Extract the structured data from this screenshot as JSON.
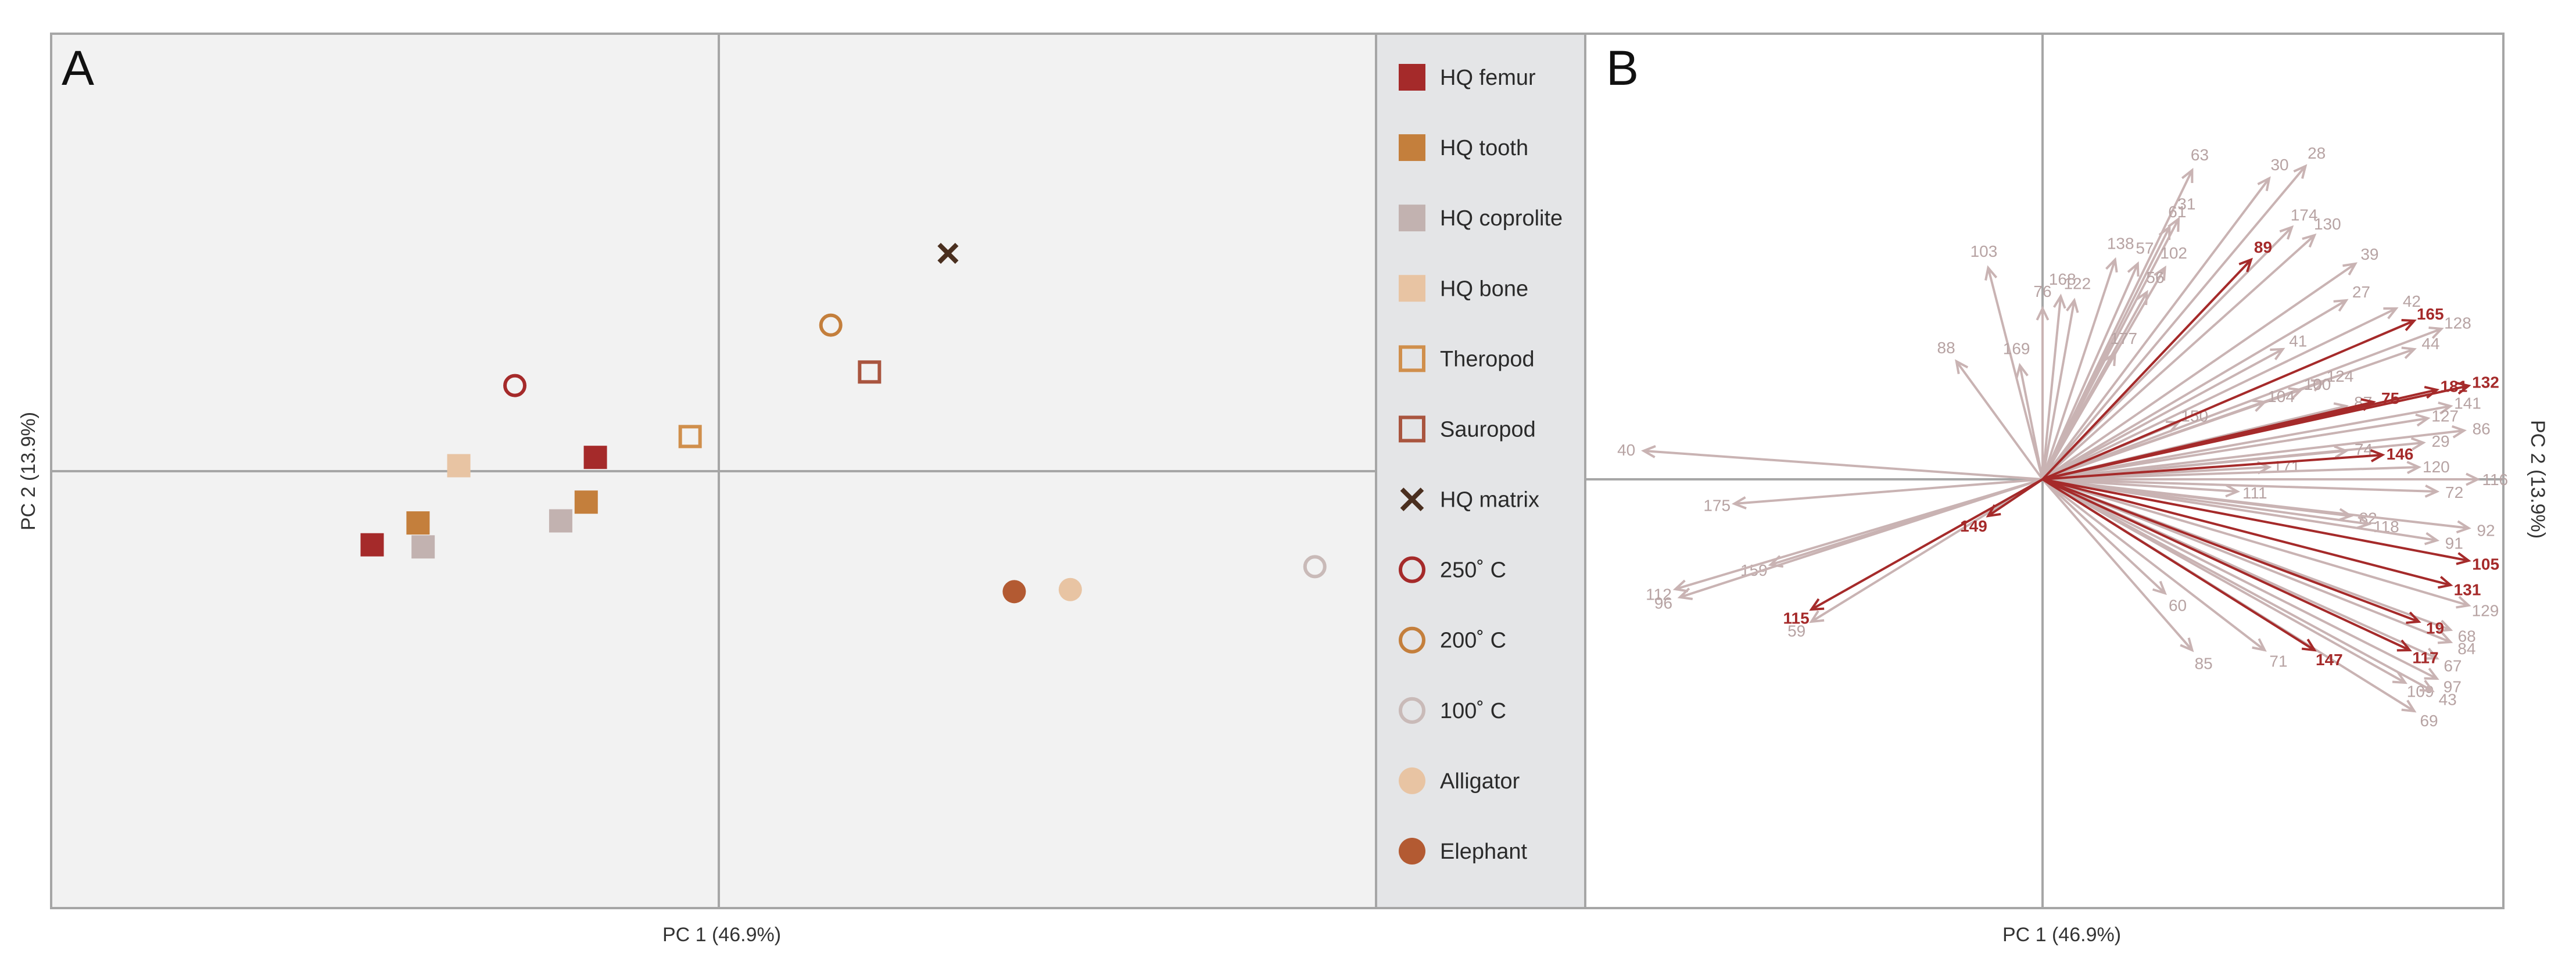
{
  "colors": {
    "femur": "#a52a2a",
    "tooth": "#c47f3c",
    "coprolite": "#c2b2b0",
    "bone": "#e8c4a3",
    "theropod": "#d08f4c",
    "sauropod": "#a9553f",
    "matrix": "#4a2f1f",
    "c250": "#a52a2a",
    "c200": "#c47f3c",
    "c100": "#c9bab8",
    "alligator": "#e8c4a3",
    "elephant": "#b35a32",
    "vector_grey": "#c9b3b3",
    "vector_red": "#a52a2a",
    "panel_bg": "#f2f2f2",
    "legend_bg": "#e4e5e7",
    "frame": "#a6a6a6"
  },
  "chart_data": [
    {
      "type": "scatter",
      "panel_label": "A",
      "xlabel": "PC 1 (46.9%)",
      "ylabel": "PC 2 (13.9%)",
      "xlim": [
        -6.5,
        6.5
      ],
      "ylim": [
        -4.2,
        4.2
      ],
      "grid": false,
      "legend_position": "right",
      "series": [
        {
          "name": "HQ femur",
          "marker": "square-filled",
          "color_key": "femur",
          "points": [
            [
              -3.35,
              -0.71
            ],
            [
              -1.16,
              0.13
            ]
          ]
        },
        {
          "name": "HQ tooth",
          "marker": "square-filled",
          "color_key": "tooth",
          "points": [
            [
              -2.9,
              -0.5
            ],
            [
              -1.25,
              -0.3
            ]
          ]
        },
        {
          "name": "HQ coprolite",
          "marker": "square-filled",
          "color_key": "coprolite",
          "points": [
            [
              -2.85,
              -0.73
            ],
            [
              -1.5,
              -0.48
            ]
          ]
        },
        {
          "name": "HQ bone",
          "marker": "square-filled",
          "color_key": "bone",
          "points": [
            [
              -2.5,
              0.05
            ]
          ]
        },
        {
          "name": "Theropod",
          "marker": "square-open",
          "color_key": "theropod",
          "points": [
            [
              -0.23,
              0.33
            ]
          ]
        },
        {
          "name": "Sauropod",
          "marker": "square-open",
          "color_key": "sauropod",
          "points": [
            [
              1.53,
              0.95
            ]
          ]
        },
        {
          "name": "HQ matrix",
          "marker": "cross",
          "color_key": "matrix",
          "points": [
            [
              2.3,
              2.09
            ]
          ]
        },
        {
          "name": "250˚ C",
          "marker": "circle-open",
          "color_key": "c250",
          "points": [
            [
              -1.95,
              0.82
            ]
          ]
        },
        {
          "name": "200˚ C",
          "marker": "circle-open",
          "color_key": "c200",
          "points": [
            [
              1.15,
              1.4
            ]
          ]
        },
        {
          "name": "100˚ C",
          "marker": "circle-open",
          "color_key": "c100",
          "points": [
            [
              5.9,
              -0.92
            ]
          ]
        },
        {
          "name": "Alligator",
          "marker": "circle-filled",
          "color_key": "alligator",
          "points": [
            [
              3.5,
              -1.14
            ]
          ]
        },
        {
          "name": "Elephant",
          "marker": "circle-filled",
          "color_key": "elephant",
          "points": [
            [
              2.95,
              -1.16
            ]
          ]
        }
      ]
    },
    {
      "type": "biplot",
      "panel_label": "B",
      "xlabel": "PC 1 (46.9%)",
      "ylabel": "PC 2 (13.9%)",
      "xlim": [
        -1.0,
        1.0
      ],
      "ylim": [
        -1.0,
        1.0
      ],
      "grid": false,
      "vectors": [
        {
          "label": "63",
          "x": 0.33,
          "y": 0.76,
          "highlight": false
        },
        {
          "label": "30",
          "x": 0.5,
          "y": 0.74,
          "highlight": false
        },
        {
          "label": "28",
          "x": 0.58,
          "y": 0.77,
          "highlight": false
        },
        {
          "label": "61",
          "x": 0.28,
          "y": 0.62,
          "highlight": false
        },
        {
          "label": "31",
          "x": 0.3,
          "y": 0.64,
          "highlight": false
        },
        {
          "label": "174",
          "x": 0.55,
          "y": 0.62,
          "highlight": false
        },
        {
          "label": "130",
          "x": 0.6,
          "y": 0.6,
          "highlight": false
        },
        {
          "label": "103",
          "x": -0.12,
          "y": 0.52,
          "highlight": false
        },
        {
          "label": "138",
          "x": 0.16,
          "y": 0.54,
          "highlight": false
        },
        {
          "label": "57",
          "x": 0.21,
          "y": 0.53,
          "highlight": false
        },
        {
          "label": "102",
          "x": 0.27,
          "y": 0.52,
          "highlight": false
        },
        {
          "label": "89",
          "x": 0.46,
          "y": 0.54,
          "highlight": true
        },
        {
          "label": "39",
          "x": 0.69,
          "y": 0.53,
          "highlight": false
        },
        {
          "label": "168",
          "x": 0.04,
          "y": 0.45,
          "highlight": false
        },
        {
          "label": "122",
          "x": 0.07,
          "y": 0.44,
          "highlight": false
        },
        {
          "label": "56",
          "x": 0.23,
          "y": 0.46,
          "highlight": false
        },
        {
          "label": "76",
          "x": 0.0,
          "y": 0.42,
          "highlight": false
        },
        {
          "label": "27",
          "x": 0.67,
          "y": 0.44,
          "highlight": false
        },
        {
          "label": "42",
          "x": 0.78,
          "y": 0.42,
          "highlight": false
        },
        {
          "label": "165",
          "x": 0.82,
          "y": 0.39,
          "highlight": true
        },
        {
          "label": "128",
          "x": 0.88,
          "y": 0.37,
          "highlight": false
        },
        {
          "label": "88",
          "x": -0.19,
          "y": 0.29,
          "highlight": false
        },
        {
          "label": "169",
          "x": -0.05,
          "y": 0.28,
          "highlight": false
        },
        {
          "label": "177",
          "x": 0.16,
          "y": 0.31,
          "highlight": false
        },
        {
          "label": "41",
          "x": 0.53,
          "y": 0.32,
          "highlight": false
        },
        {
          "label": "44",
          "x": 0.82,
          "y": 0.32,
          "highlight": false
        },
        {
          "label": "124",
          "x": 0.62,
          "y": 0.24,
          "highlight": false
        },
        {
          "label": "100",
          "x": 0.57,
          "y": 0.22,
          "highlight": false
        },
        {
          "label": "181",
          "x": 0.87,
          "y": 0.22,
          "highlight": true
        },
        {
          "label": "132",
          "x": 0.94,
          "y": 0.23,
          "highlight": true
        },
        {
          "label": "75",
          "x": 0.73,
          "y": 0.19,
          "highlight": true
        },
        {
          "label": "104",
          "x": 0.49,
          "y": 0.19,
          "highlight": false
        },
        {
          "label": "87",
          "x": 0.67,
          "y": 0.18,
          "highlight": false
        },
        {
          "label": "141",
          "x": 0.9,
          "y": 0.18,
          "highlight": false
        },
        {
          "label": "150",
          "x": 0.3,
          "y": 0.14,
          "highlight": false
        },
        {
          "label": "127",
          "x": 0.85,
          "y": 0.15,
          "highlight": false
        },
        {
          "label": "86",
          "x": 0.93,
          "y": 0.12,
          "highlight": false
        },
        {
          "label": "29",
          "x": 0.84,
          "y": 0.09,
          "highlight": false
        },
        {
          "label": "74",
          "x": 0.67,
          "y": 0.07,
          "highlight": false
        },
        {
          "label": "146",
          "x": 0.75,
          "y": 0.06,
          "highlight": true
        },
        {
          "label": "171",
          "x": 0.5,
          "y": 0.03,
          "highlight": false
        },
        {
          "label": "120",
          "x": 0.83,
          "y": 0.03,
          "highlight": false
        },
        {
          "label": "116",
          "x": 0.96,
          "y": 0.0,
          "highlight": false
        },
        {
          "label": "111",
          "x": 0.43,
          "y": -0.03,
          "highlight": false
        },
        {
          "label": "72",
          "x": 0.87,
          "y": -0.03,
          "highlight": false
        },
        {
          "label": "40",
          "x": -0.88,
          "y": 0.07,
          "highlight": false
        },
        {
          "label": "175",
          "x": -0.68,
          "y": -0.06,
          "highlight": false
        },
        {
          "label": "149",
          "x": -0.12,
          "y": -0.09,
          "highlight": true
        },
        {
          "label": "82",
          "x": 0.68,
          "y": -0.09,
          "highlight": false
        },
        {
          "label": "118",
          "x": 0.72,
          "y": -0.11,
          "highlight": false
        },
        {
          "label": "92",
          "x": 0.94,
          "y": -0.12,
          "highlight": false
        },
        {
          "label": "91",
          "x": 0.87,
          "y": -0.15,
          "highlight": false
        },
        {
          "label": "105",
          "x": 0.94,
          "y": -0.2,
          "highlight": true
        },
        {
          "label": "159",
          "x": -0.6,
          "y": -0.21,
          "highlight": false
        },
        {
          "label": "112",
          "x": -0.81,
          "y": -0.27,
          "highlight": false
        },
        {
          "label": "96",
          "x": -0.8,
          "y": -0.29,
          "highlight": false
        },
        {
          "label": "131",
          "x": 0.9,
          "y": -0.26,
          "highlight": true
        },
        {
          "label": "129",
          "x": 0.94,
          "y": -0.31,
          "highlight": false
        },
        {
          "label": "115",
          "x": -0.51,
          "y": -0.32,
          "highlight": true
        },
        {
          "label": "59",
          "x": -0.51,
          "y": -0.35,
          "highlight": false
        },
        {
          "label": "60",
          "x": 0.27,
          "y": -0.28,
          "highlight": false
        },
        {
          "label": "19",
          "x": 0.83,
          "y": -0.35,
          "highlight": true
        },
        {
          "label": "68",
          "x": 0.9,
          "y": -0.37,
          "highlight": false
        },
        {
          "label": "84",
          "x": 0.9,
          "y": -0.4,
          "highlight": false
        },
        {
          "label": "85",
          "x": 0.33,
          "y": -0.42,
          "highlight": false
        },
        {
          "label": "71",
          "x": 0.49,
          "y": -0.42,
          "highlight": false
        },
        {
          "label": "147",
          "x": 0.6,
          "y": -0.42,
          "highlight": true
        },
        {
          "label": "117",
          "x": 0.81,
          "y": -0.42,
          "highlight": true
        },
        {
          "label": "67",
          "x": 0.87,
          "y": -0.44,
          "highlight": false
        },
        {
          "label": "97",
          "x": 0.87,
          "y": -0.49,
          "highlight": false
        },
        {
          "label": "109",
          "x": 0.8,
          "y": -0.5,
          "highlight": false
        },
        {
          "label": "43",
          "x": 0.86,
          "y": -0.52,
          "highlight": false
        },
        {
          "label": "69",
          "x": 0.82,
          "y": -0.57,
          "highlight": false
        }
      ]
    }
  ]
}
